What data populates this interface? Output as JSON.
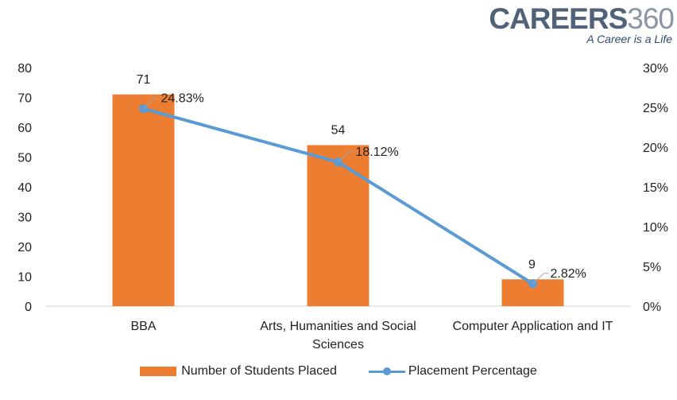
{
  "logo": {
    "brand": "CAREERS",
    "brand_num": "360",
    "tagline": "A Career is a Life"
  },
  "chart_data": {
    "type": "bar+line",
    "categories": [
      "BBA",
      "Arts, Humanities and Social Sciences",
      "Computer Application and IT"
    ],
    "category_lines": [
      [
        "BBA"
      ],
      [
        "Arts, Humanities and Social",
        "Sciences"
      ],
      [
        "Computer Application and IT"
      ]
    ],
    "series": [
      {
        "name": "Number of Students Placed",
        "type": "bar",
        "axis": "left",
        "values": [
          71,
          54,
          9
        ],
        "labels": [
          "71",
          "54",
          "9"
        ],
        "color": "#ed7d31"
      },
      {
        "name": "Placement Percentage",
        "type": "line",
        "axis": "right",
        "values": [
          24.83,
          18.12,
          2.82
        ],
        "labels": [
          "24.83%",
          "18.12%",
          "2.82%"
        ],
        "color": "#5b9bd5"
      }
    ],
    "y_left": {
      "ylim": [
        0,
        80
      ],
      "ticks": [
        "0",
        "10",
        "20",
        "30",
        "40",
        "50",
        "60",
        "70",
        "80"
      ]
    },
    "y_right": {
      "ylim": [
        0,
        30
      ],
      "ticks": [
        "0%",
        "5%",
        "10%",
        "15%",
        "20%",
        "25%",
        "30%"
      ]
    },
    "grid": false,
    "legend": "bottom"
  }
}
